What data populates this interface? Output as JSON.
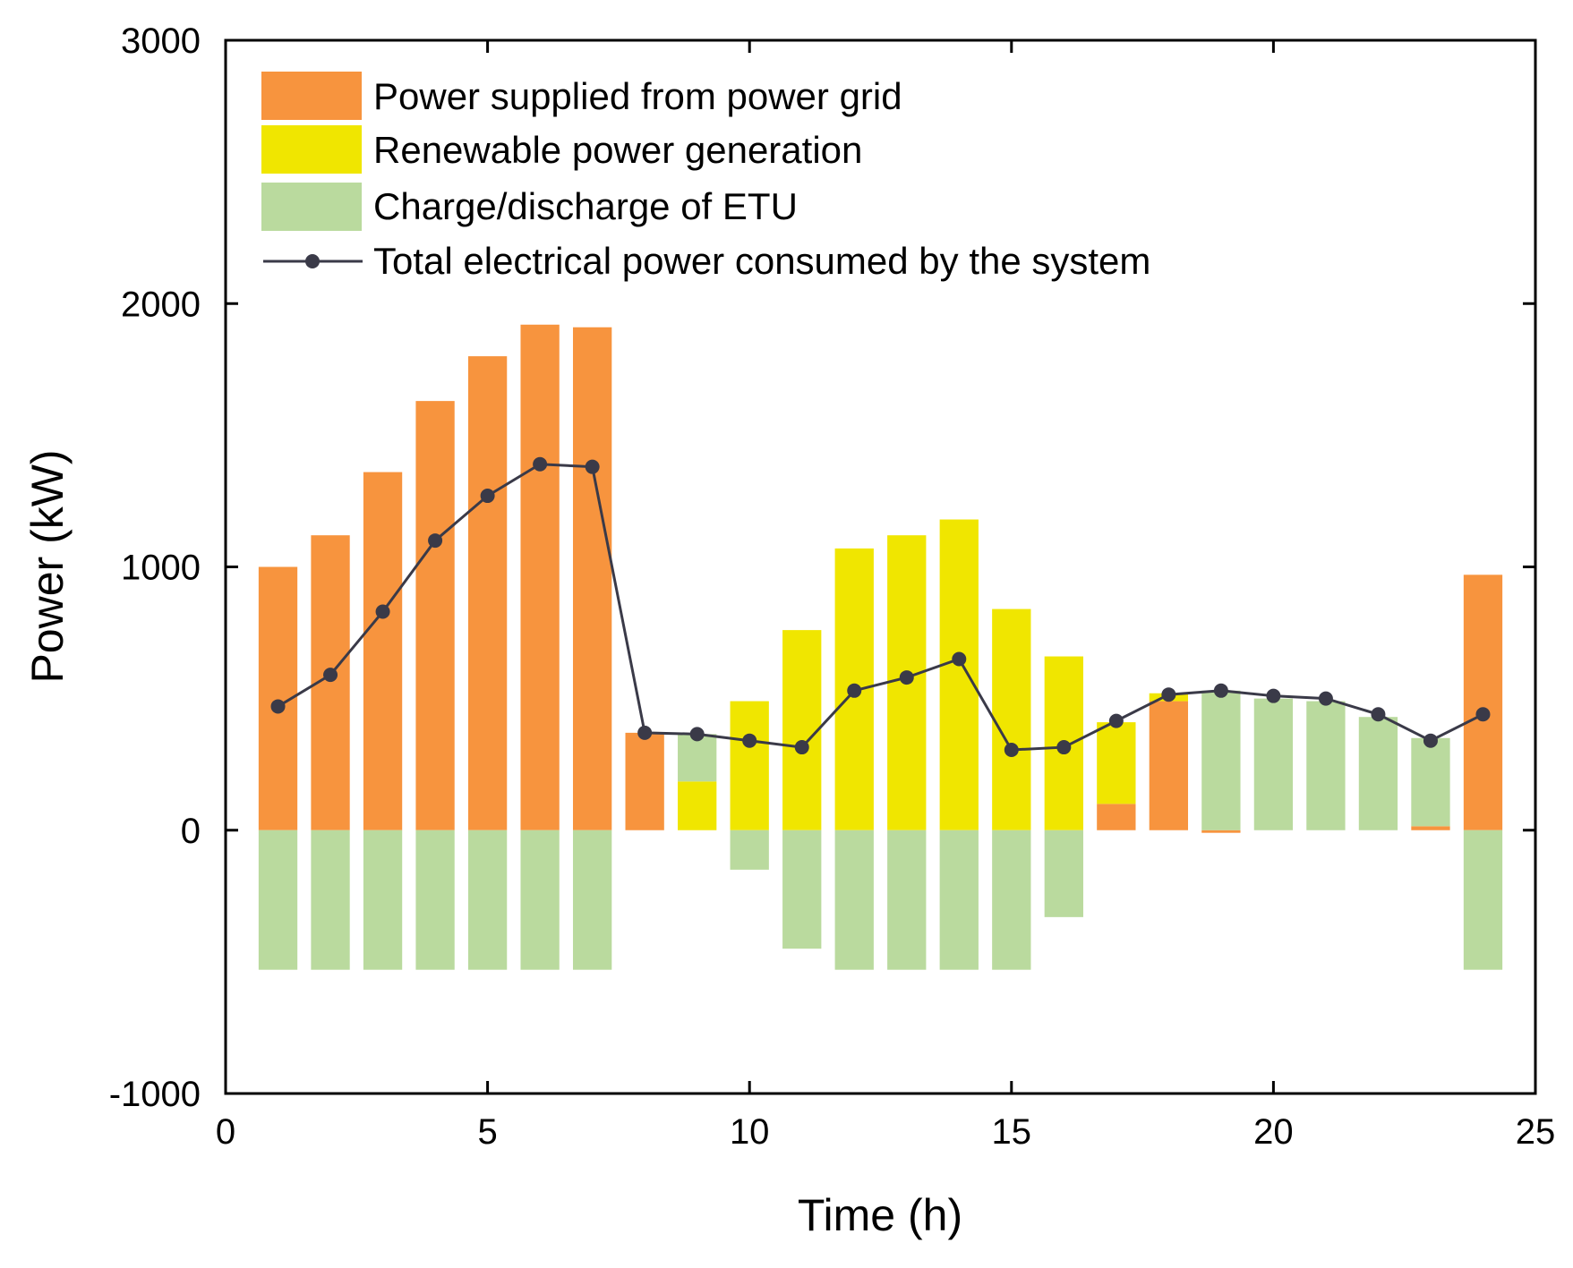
{
  "chart_data": {
    "type": "bar",
    "xlabel": "Time (h)",
    "ylabel": "Power (kW)",
    "xlim": [
      0,
      25
    ],
    "ylim": [
      -1000,
      3000
    ],
    "xticks": [
      0,
      5,
      10,
      15,
      20,
      25
    ],
    "yticks": [
      -1000,
      0,
      1000,
      2000,
      3000
    ],
    "x": [
      1,
      2,
      3,
      4,
      5,
      6,
      7,
      8,
      9,
      10,
      11,
      12,
      13,
      14,
      15,
      16,
      17,
      18,
      19,
      20,
      21,
      22,
      23,
      24
    ],
    "series": [
      {
        "name": "Power supplied from power grid",
        "kind": "bar",
        "color": "#F7943E",
        "values": [
          1000,
          1120,
          1360,
          1630,
          1800,
          1920,
          1910,
          370,
          0,
          0,
          0,
          0,
          0,
          0,
          0,
          0,
          100,
          490,
          -10,
          0,
          0,
          0,
          15,
          970
        ]
      },
      {
        "name": "Renewable power generation",
        "kind": "bar",
        "color": "#F0E600",
        "values": [
          0,
          0,
          0,
          0,
          0,
          0,
          0,
          0,
          185,
          490,
          760,
          1070,
          1120,
          1180,
          840,
          660,
          310,
          30,
          0,
          0,
          0,
          0,
          0,
          0
        ]
      },
      {
        "name": "Charge/discharge of ETU",
        "kind": "bar",
        "color": "#BADA9E",
        "values": [
          -530,
          -530,
          -530,
          -530,
          -530,
          -530,
          -530,
          0,
          180,
          -150,
          -450,
          -530,
          -530,
          -530,
          -530,
          -330,
          0,
          0,
          530,
          500,
          490,
          430,
          335,
          -530
        ]
      },
      {
        "name": "Total electrical power consumed by the system",
        "kind": "line",
        "color": "#3A3A48",
        "values": [
          470,
          590,
          830,
          1100,
          1270,
          1390,
          1380,
          370,
          365,
          340,
          315,
          530,
          580,
          650,
          305,
          315,
          415,
          515,
          530,
          510,
          500,
          440,
          340,
          440
        ]
      }
    ]
  }
}
